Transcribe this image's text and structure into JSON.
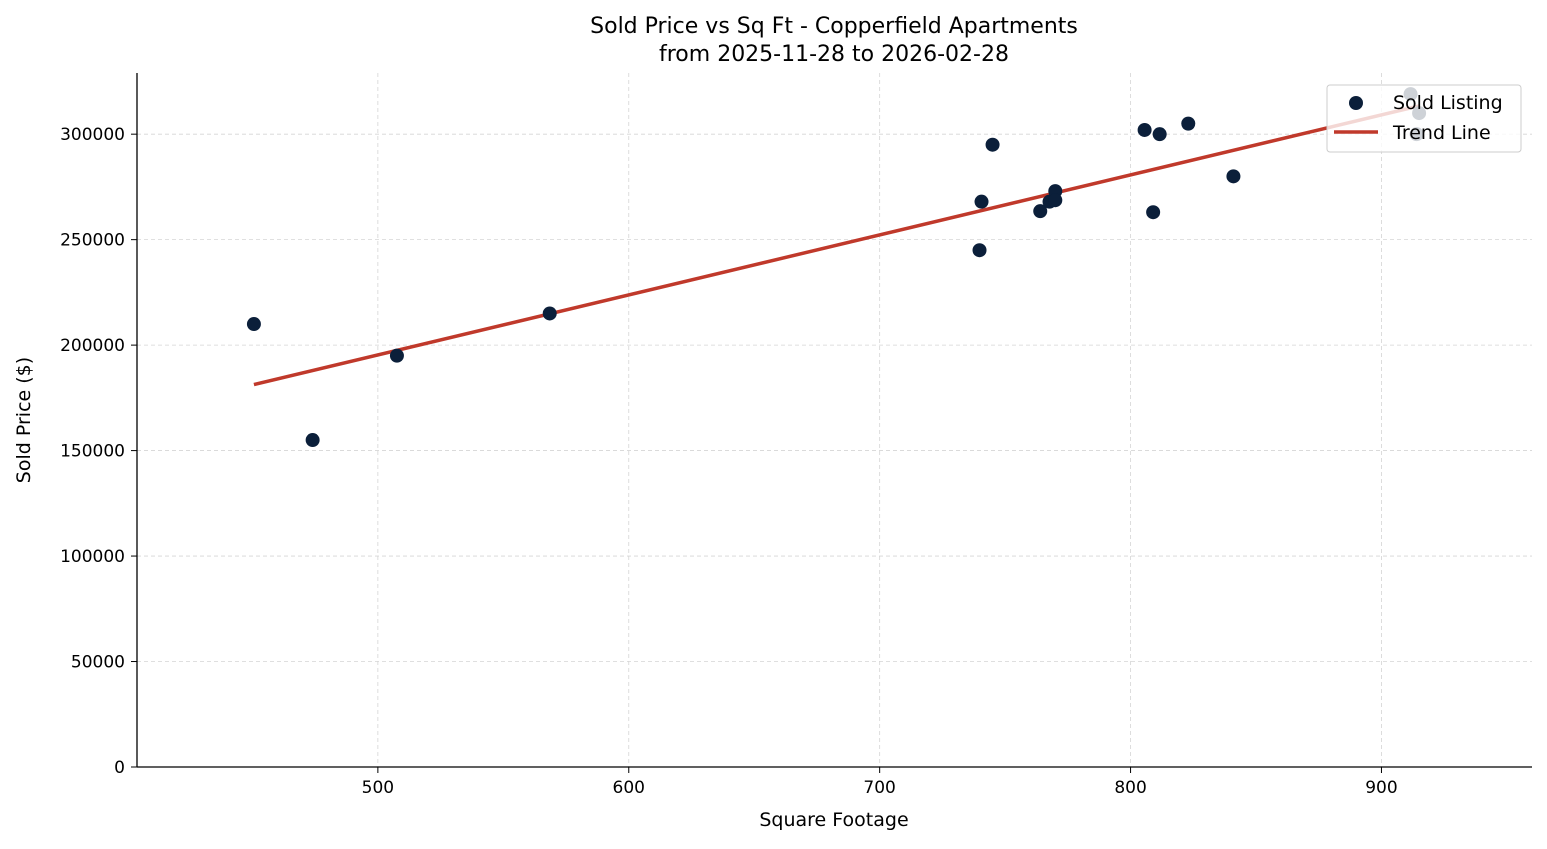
{
  "chart_data": {
    "type": "scatter",
    "title": "Sold Price vs Sq Ft - Copperfield Apartments",
    "subtitle": "from 2025-11-28 to 2026-02-28",
    "xlabel": "Square Footage",
    "ylabel": "Sold Price ($)",
    "xlim": [
      404,
      960
    ],
    "ylim": [
      0,
      329000
    ],
    "xticks": [
      500,
      600,
      700,
      800,
      900
    ],
    "yticks": [
      0,
      50000,
      100000,
      150000,
      200000,
      250000,
      300000
    ],
    "grid": true,
    "legend_position": "top-right",
    "series": [
      {
        "name": "Sold Listing",
        "kind": "scatter",
        "color": "#0b1f3a",
        "points": [
          [
            450.6,
            210000
          ],
          [
            474,
            155000
          ],
          [
            507.6,
            195000
          ],
          [
            568.5,
            215000
          ],
          [
            739.8,
            245000
          ],
          [
            740.6,
            268000
          ],
          [
            745,
            295000
          ],
          [
            764,
            263500
          ],
          [
            767.7,
            268000
          ],
          [
            770,
            273000
          ],
          [
            770,
            268700
          ],
          [
            805.6,
            302000
          ],
          [
            809,
            263000
          ],
          [
            811.6,
            300000
          ],
          [
            823,
            305000
          ],
          [
            841,
            280000
          ],
          [
            911.6,
            319000
          ],
          [
            915,
            310000
          ],
          [
            914,
            300000
          ]
        ]
      },
      {
        "name": "Trend Line",
        "kind": "line",
        "color": "#c0392b",
        "points": [
          [
            450.6,
            181300
          ],
          [
            915,
            313400
          ]
        ]
      }
    ]
  }
}
